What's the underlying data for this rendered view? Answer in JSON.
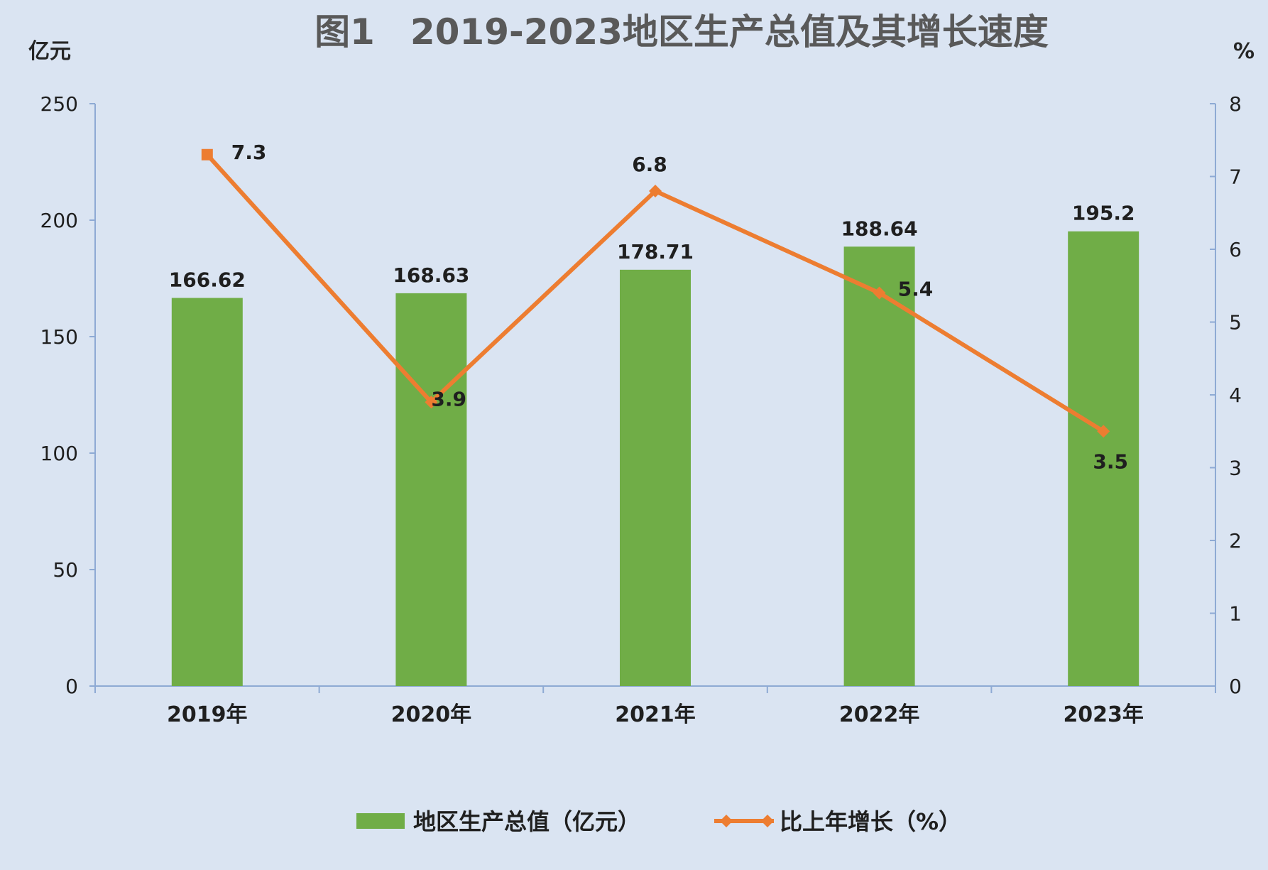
{
  "chart_data": {
    "type": "bar",
    "title": "图1　2019-2023地区生产总值及其增长速度",
    "y_left_unit": "亿元",
    "y_right_unit": "%",
    "categories": [
      "2019年",
      "2020年",
      "2021年",
      "2022年",
      "2023年"
    ],
    "ylim_left": [
      0,
      250
    ],
    "yticks_left": [
      "0",
      "50",
      "100",
      "150",
      "200",
      "250"
    ],
    "ylim_right": [
      0,
      8
    ],
    "yticks_right": [
      "0",
      "1",
      "2",
      "3",
      "4",
      "5",
      "6",
      "7",
      "8"
    ],
    "series": [
      {
        "name": "地区生产总值（亿元）",
        "type": "bar",
        "axis": "left",
        "values": [
          166.62,
          168.63,
          178.71,
          188.64,
          195.2
        ],
        "labels": [
          "166.62",
          "168.63",
          "178.71",
          "188.64",
          "195.2"
        ],
        "color": "#70ad47"
      },
      {
        "name": "比上年增长（%）",
        "type": "line",
        "axis": "right",
        "values": [
          7.3,
          3.9,
          6.8,
          5.4,
          3.5
        ],
        "labels": [
          "7.3",
          "3.9",
          "6.8",
          "5.4",
          "3.5"
        ],
        "color": "#ed7d31"
      }
    ],
    "grid": false,
    "legend_position": "bottom"
  }
}
